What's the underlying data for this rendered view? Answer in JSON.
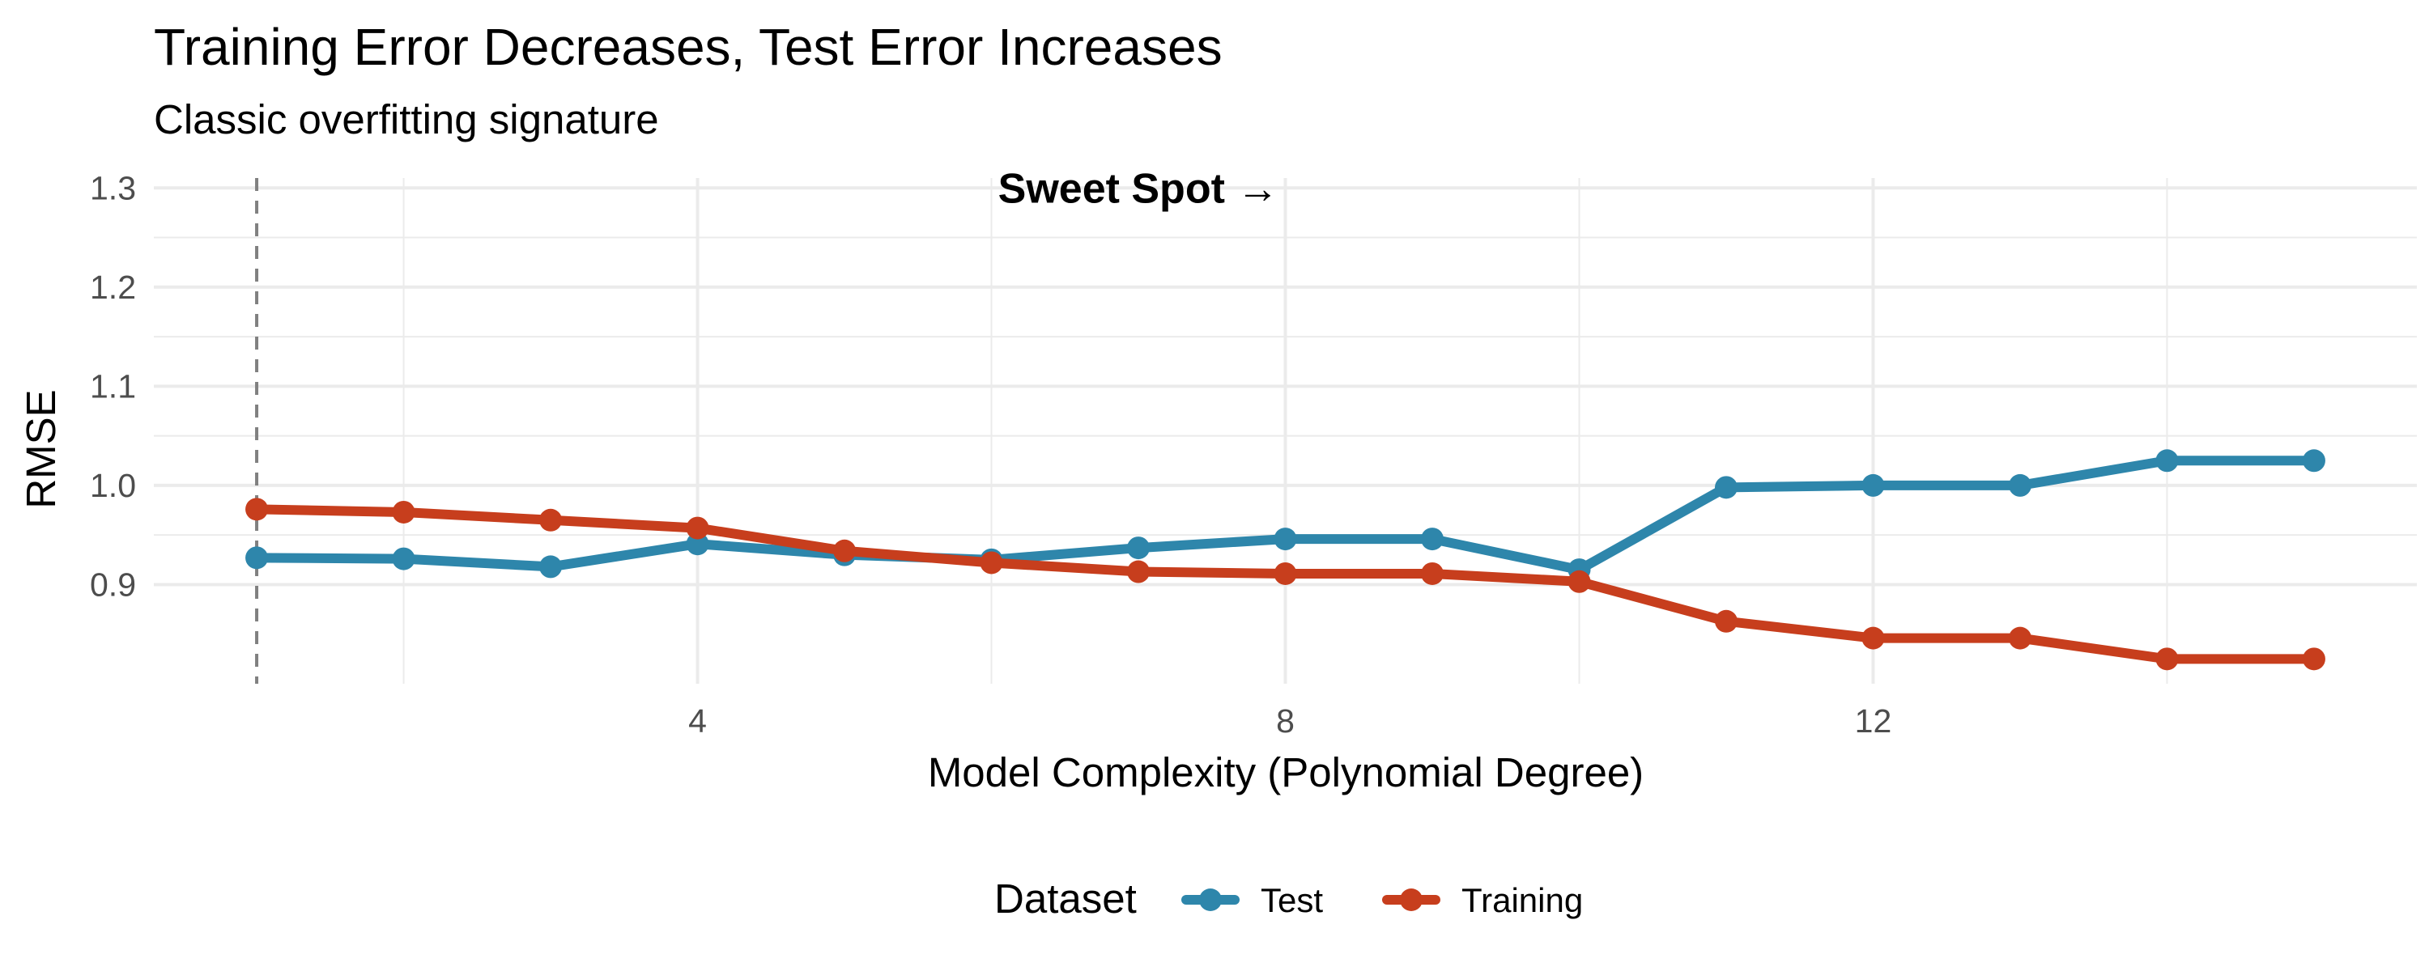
{
  "chart_data": {
    "type": "line",
    "title": "Training Error Decreases, Test Error Increases",
    "subtitle": "Classic overfitting signature",
    "xlabel": "Model Complexity (Polynomial Degree)",
    "ylabel": "RMSE",
    "x": [
      1,
      2,
      3,
      4,
      5,
      6,
      7,
      8,
      9,
      10,
      11,
      12,
      13,
      14,
      15
    ],
    "xlim": [
      0.3,
      15.7
    ],
    "ylim": [
      0.8,
      1.31
    ],
    "x_ticks": [
      4,
      8,
      12
    ],
    "x_tick_labels": [
      "4",
      "8",
      "12"
    ],
    "y_ticks": [
      0.9,
      1.0,
      1.1,
      1.2,
      1.3
    ],
    "y_tick_labels": [
      "0.9",
      "1.0",
      "1.1",
      "1.2",
      "1.3"
    ],
    "grid": true,
    "legend_position": "bottom",
    "legend_title": "Dataset",
    "series": [
      {
        "name": "Test",
        "color": "#2e86ab",
        "values": [
          0.927,
          0.926,
          0.918,
          0.941,
          0.93,
          0.925,
          0.937,
          0.946,
          0.946,
          0.915,
          0.998,
          1.0,
          1.0,
          1.025,
          1.025
        ]
      },
      {
        "name": "Training",
        "color": "#c73e1d",
        "values": [
          0.976,
          0.973,
          0.965,
          0.957,
          0.934,
          0.922,
          0.913,
          0.911,
          0.911,
          0.903,
          0.863,
          0.846,
          0.846,
          0.825,
          0.825
        ]
      }
    ],
    "vline": {
      "x": 1,
      "color": "#808080",
      "style": "dashed"
    },
    "annotation": {
      "text": "Sweet Spot →",
      "x": 7,
      "y": 1.3
    }
  }
}
